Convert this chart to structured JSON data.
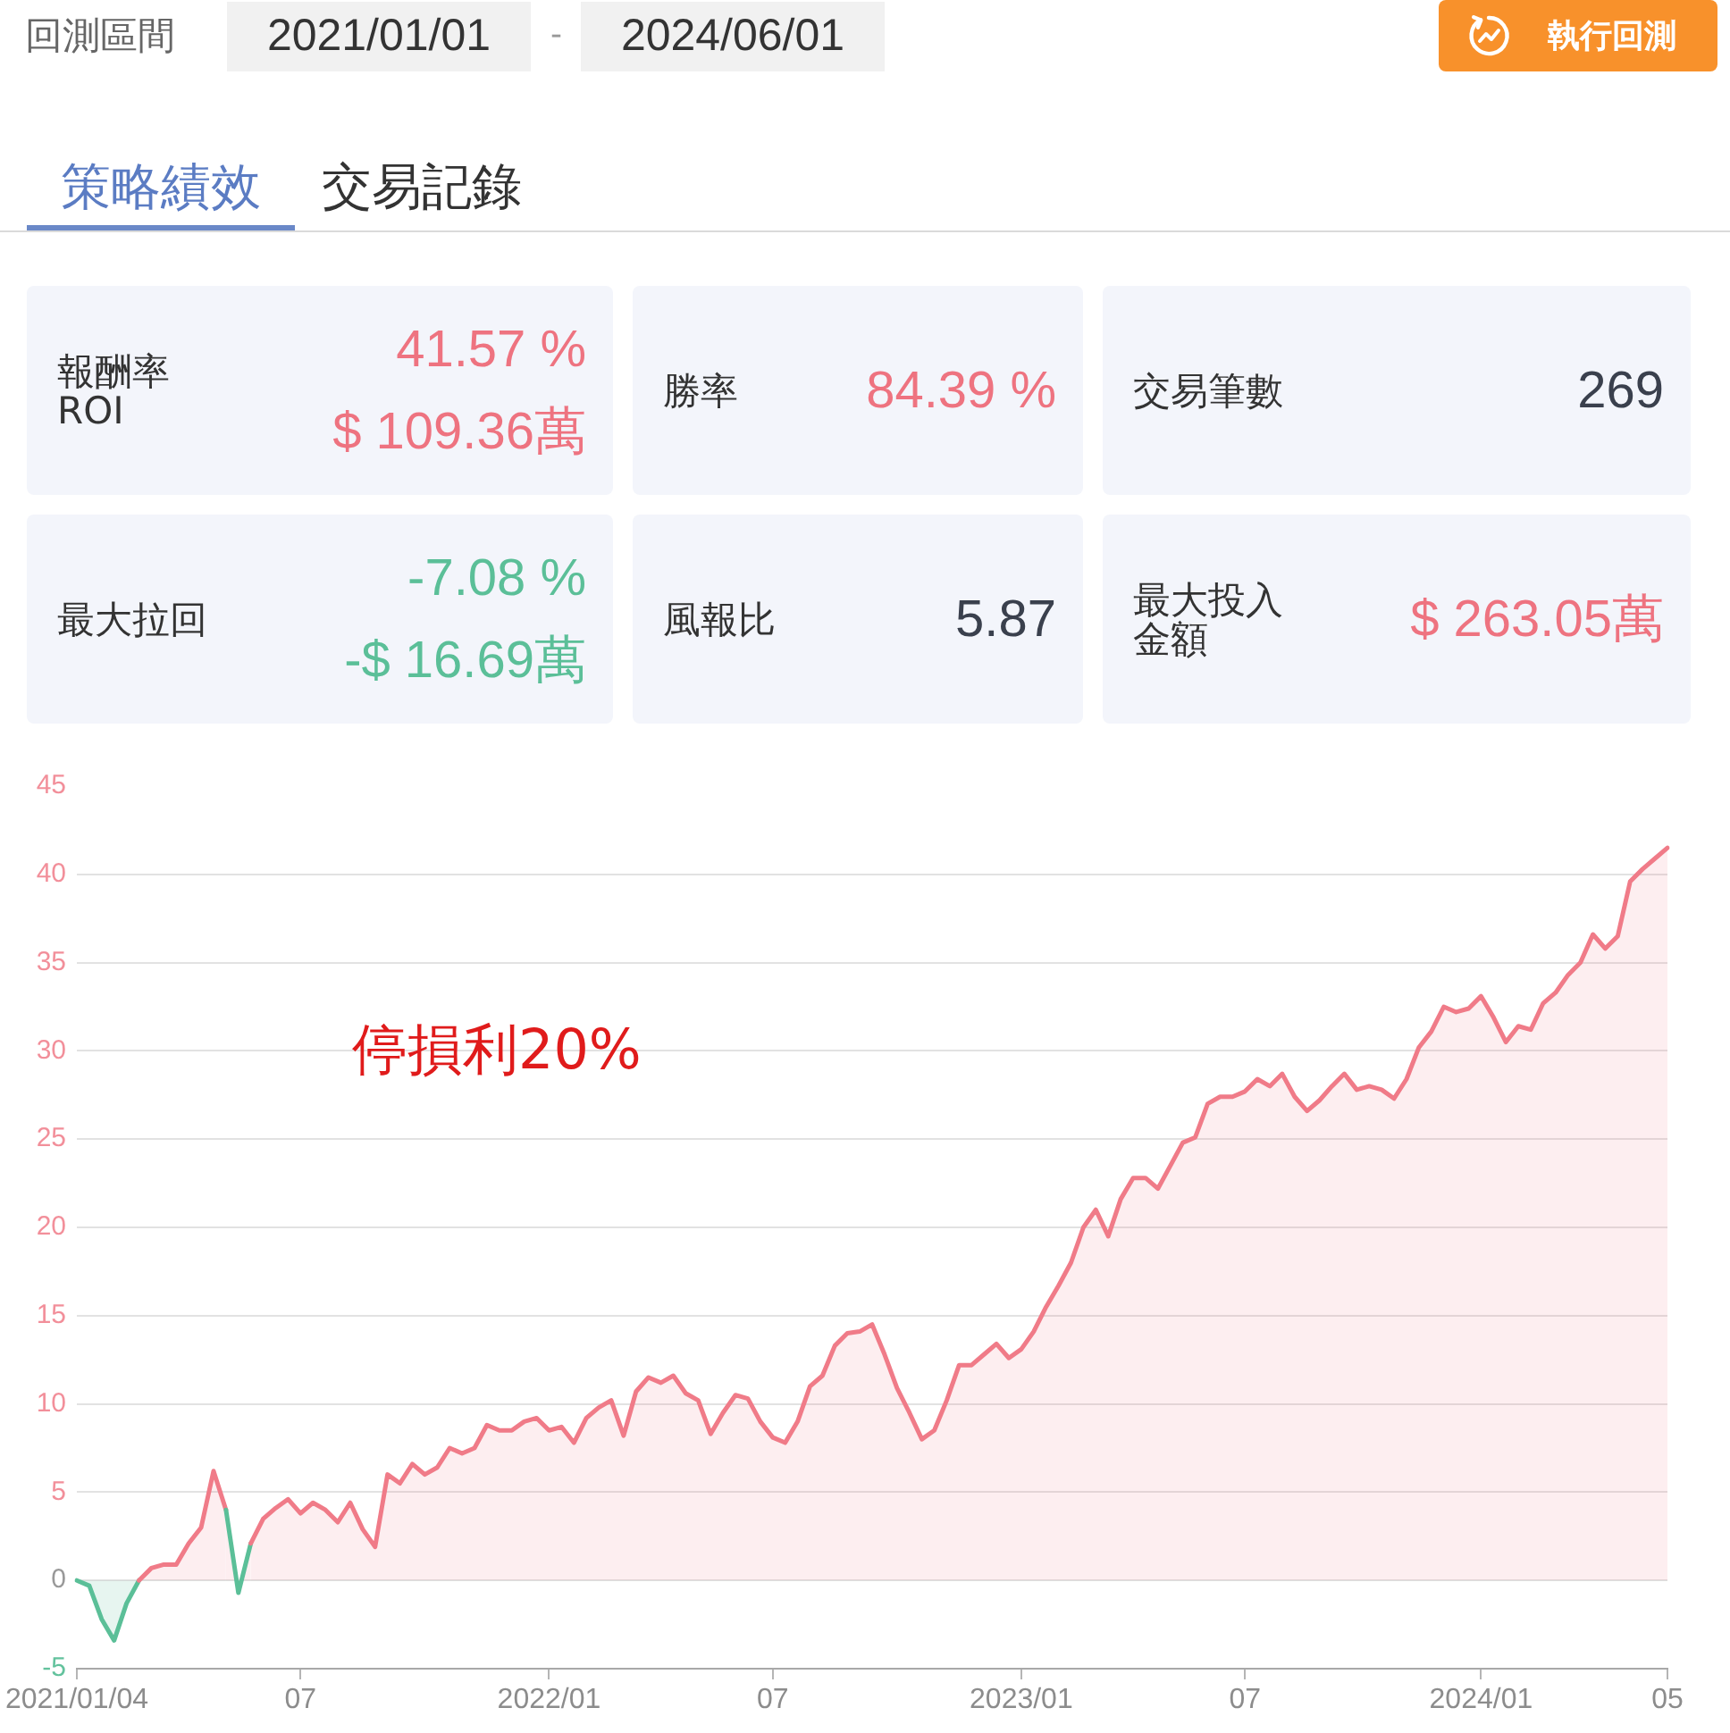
{
  "chart_data": [
    {
      "type": "other",
      "annotations": [
        "回測區間",
        "2021/01/01",
        "-",
        "2024/06/01",
        "執行回測",
        "策略績效",
        "交易記錄"
      ]
    },
    {
      "type": "other",
      "annotations": [
        "報酬率\nROI",
        "41.57 %\n$ 109.36萬",
        "勝率",
        "84.39 %",
        "交易筆數",
        "269",
        "最大拉回",
        "-7.08 %\n-$ 16.69萬",
        "風報比",
        "5.87",
        "最大投入金額",
        "$ 263.05萬"
      ],
      "colors": [
        "#ee7380",
        "#ee7380",
        "#3a404d",
        "#5bbf98",
        "#3a404d",
        "#ee7380"
      ]
    },
    {
      "type": "area",
      "categories": [
        "2021/01/04",
        null,
        null,
        null,
        null,
        null,
        null,
        null,
        null,
        null,
        null,
        null,
        null,
        null,
        null,
        null,
        null,
        null,
        "07",
        null,
        null,
        null,
        null,
        null,
        null,
        null,
        null,
        null,
        null,
        null,
        null,
        null,
        null,
        null,
        null,
        null,
        null,
        null,
        "2022/01",
        null,
        null,
        null,
        null,
        null,
        null,
        null,
        null,
        null,
        null,
        null,
        null,
        null,
        null,
        null,
        null,
        null,
        "07",
        null,
        null,
        null,
        null,
        null,
        null,
        null,
        null,
        null,
        null,
        null,
        null,
        null,
        null,
        null,
        null,
        null,
        null,
        null,
        "2023/01",
        null,
        null,
        null,
        null,
        null,
        null,
        null,
        null,
        null,
        null,
        null,
        null,
        null,
        null,
        null,
        null,
        null,
        "07",
        null,
        null,
        null,
        null,
        null,
        null,
        null,
        null,
        null,
        null,
        null,
        null,
        null,
        null,
        null,
        null,
        null,
        null,
        "2024/01",
        null,
        null,
        null,
        null,
        null,
        null,
        null,
        null,
        null,
        null,
        null,
        null,
        null,
        null,
        "05"
      ],
      "values": [
        0,
        -0.3,
        -2.2,
        -3.4,
        -1.3,
        0,
        0.7,
        0.9,
        0.9,
        2.1,
        3,
        6.2,
        4,
        -0.7,
        2.1,
        3.5,
        4.1,
        4.6,
        3.8,
        4.4,
        4,
        3.3,
        4.4,
        2.9,
        1.9,
        6,
        5.5,
        6.6,
        6,
        6.4,
        7.5,
        7.2,
        7.5,
        8.8,
        8.5,
        8.5,
        9,
        9.2,
        8.5,
        8.7,
        7.8,
        9.2,
        9.8,
        10.2,
        8.2,
        10.7,
        11.5,
        11.2,
        11.6,
        10.6,
        10.2,
        8.3,
        9.5,
        10.5,
        10.3,
        9,
        8.1,
        7.8,
        9,
        11,
        11.6,
        13.3,
        14,
        14.1,
        14.5,
        12.8,
        10.9,
        9.5,
        8,
        8.5,
        10.2,
        12.2,
        12.2,
        12.8,
        13.4,
        12.6,
        13.1,
        14.1,
        15.5,
        16.7,
        18,
        20,
        21,
        19.5,
        21.6,
        22.8,
        22.8,
        22.2,
        23.5,
        24.8,
        25.1,
        27,
        27.4,
        27.4,
        27.7,
        28.4,
        28,
        28.7,
        27.4,
        26.6,
        27.2,
        28,
        28.7,
        27.8,
        28,
        27.8,
        27.3,
        28.4,
        30.2,
        31.1,
        32.5,
        32.2,
        32.4,
        33.1,
        31.9,
        30.5,
        31.4,
        31.2,
        32.7,
        33.3,
        34.3,
        35,
        36.6,
        35.8,
        36.5,
        39.6,
        40.3,
        40.9,
        41.5
      ],
      "colors": [
        "#5bbf98",
        "#5bbf98",
        "#5bbf98",
        "#5bbf98",
        "#5bbf98",
        "#f07b88",
        "#f07b88",
        "#f07b88",
        "#f07b88",
        "#f07b88",
        "#f07b88",
        "#f07b88",
        "#f07b88",
        "#5bbf98",
        "#f07b88",
        "#f07b88",
        "#f07b88",
        "#f07b88",
        "#f07b88",
        "#f07b88",
        "#f07b88",
        "#f07b88",
        "#f07b88",
        "#f07b88",
        "#f07b88",
        "#f07b88",
        "#f07b88",
        "#f07b88",
        "#f07b88",
        "#f07b88",
        "#f07b88",
        "#f07b88",
        "#f07b88",
        "#f07b88",
        "#f07b88",
        "#f07b88",
        "#f07b88",
        "#f07b88",
        "#f07b88",
        "#f07b88",
        "#f07b88",
        "#f07b88",
        "#f07b88",
        "#f07b88",
        "#f07b88",
        "#f07b88",
        "#f07b88",
        "#f07b88",
        "#f07b88",
        "#f07b88",
        "#f07b88",
        "#f07b88",
        "#f07b88",
        "#f07b88",
        "#f07b88",
        "#f07b88",
        "#f07b88",
        "#f07b88",
        "#f07b88",
        "#f07b88",
        "#f07b88",
        "#f07b88",
        "#f07b88",
        "#f07b88",
        "#f07b88",
        "#f07b88",
        "#f07b88",
        "#f07b88",
        "#f07b88",
        "#f07b88",
        "#f07b88",
        "#f07b88",
        "#f07b88",
        "#f07b88",
        "#f07b88",
        "#f07b88",
        "#f07b88",
        "#f07b88",
        "#f07b88",
        "#f07b88",
        "#f07b88",
        "#f07b88",
        "#f07b88",
        "#f07b88",
        "#f07b88",
        "#f07b88",
        "#f07b88",
        "#f07b88",
        "#f07b88",
        "#f07b88",
        "#f07b88",
        "#f07b88",
        "#f07b88",
        "#f07b88",
        "#f07b88",
        "#f07b88",
        "#f07b88",
        "#f07b88",
        "#f07b88",
        "#f07b88",
        "#f07b88",
        "#f07b88",
        "#f07b88",
        "#f07b88",
        "#f07b88",
        "#f07b88",
        "#f07b88",
        "#f07b88",
        "#f07b88",
        "#f07b88",
        "#f07b88",
        "#f07b88",
        "#f07b88",
        "#f07b88",
        "#f07b88",
        "#f07b88",
        "#f07b88",
        "#f07b88",
        "#f07b88",
        "#f07b88",
        "#f07b88",
        "#f07b88",
        "#f07b88",
        "#f07b88",
        "#f07b88",
        "#f07b88",
        "#f07b88",
        "#f07b88",
        "#f07b88"
      ],
      "ylim": [
        -5,
        45
      ],
      "yticks": [
        -5,
        0,
        5,
        10,
        15,
        20,
        25,
        30,
        35,
        40,
        45
      ],
      "grid": "y",
      "annotations": [
        "停損利20%"
      ]
    }
  ]
}
